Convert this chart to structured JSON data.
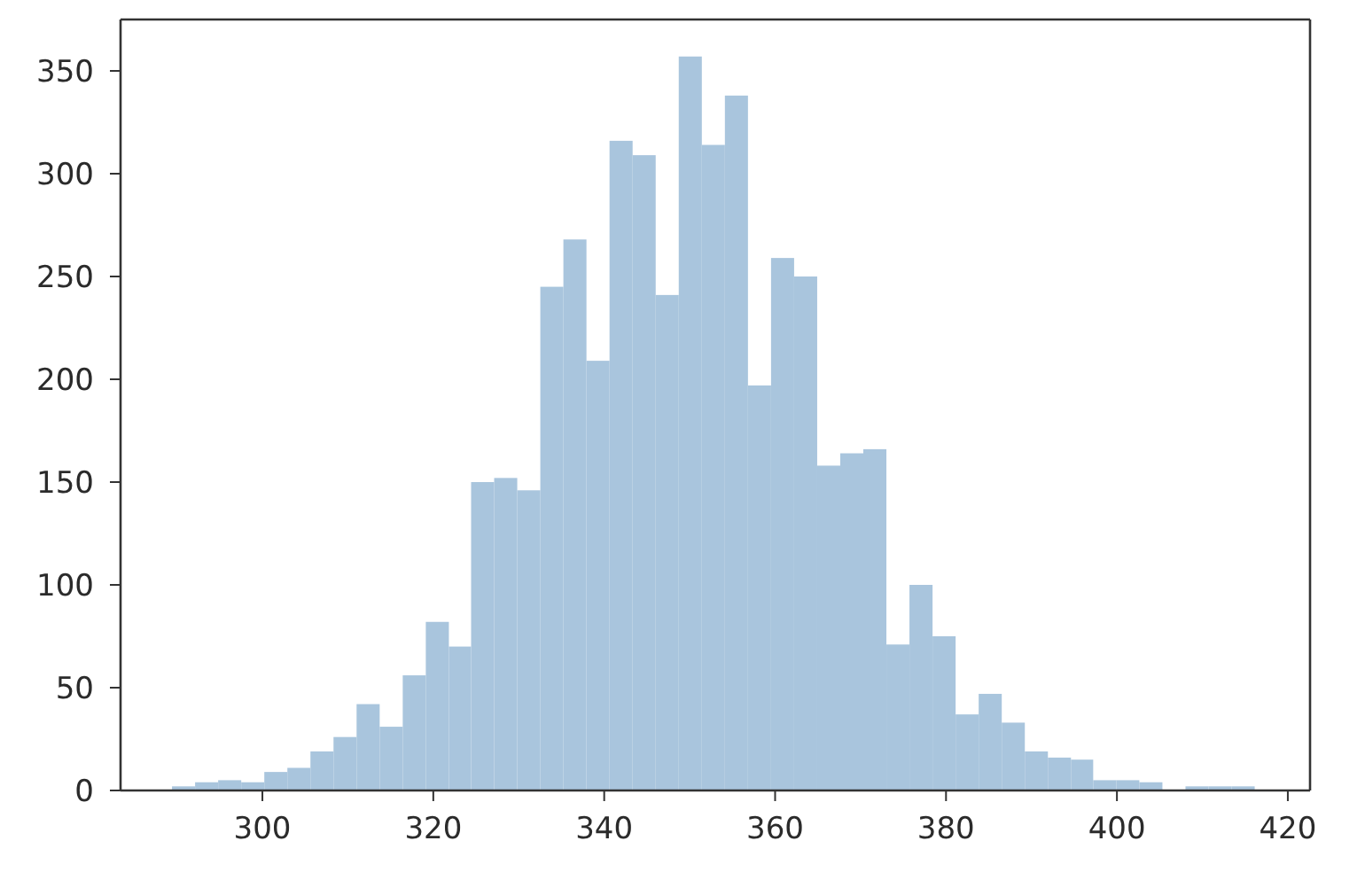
{
  "chart_data": {
    "type": "histogram",
    "bins": [
      289.4,
      292.1,
      294.8,
      297.5,
      300.2,
      302.9,
      305.6,
      308.3,
      311.0,
      313.7,
      316.4,
      319.1,
      321.8,
      324.4,
      327.1,
      329.8,
      332.5,
      335.2,
      337.9,
      340.6,
      343.3,
      346.0,
      348.7,
      351.4,
      354.1,
      356.8,
      359.5,
      362.2,
      364.9,
      367.6,
      370.3,
      373.0,
      375.7,
      378.4,
      381.1,
      383.8,
      386.5,
      389.2,
      391.9,
      394.6,
      397.2,
      399.9,
      402.6,
      405.3,
      408.0,
      410.7,
      413.4,
      416.1
    ],
    "values": [
      2,
      4,
      5,
      4,
      9,
      11,
      19,
      26,
      42,
      31,
      56,
      82,
      70,
      150,
      152,
      146,
      245,
      268,
      209,
      316,
      309,
      241,
      357,
      314,
      338,
      197,
      259,
      250,
      158,
      164,
      166,
      71,
      100,
      75,
      37,
      47,
      33,
      19,
      16,
      15,
      5,
      5,
      4,
      0,
      2,
      2,
      2
    ],
    "color": "#a9c5dd",
    "xlim": [
      283.4,
      422.6
    ],
    "ylim": [
      0,
      375
    ],
    "xticks": [
      300,
      320,
      340,
      360,
      380,
      400,
      420
    ],
    "yticks": [
      0,
      50,
      100,
      150,
      200,
      250,
      300,
      350
    ]
  }
}
